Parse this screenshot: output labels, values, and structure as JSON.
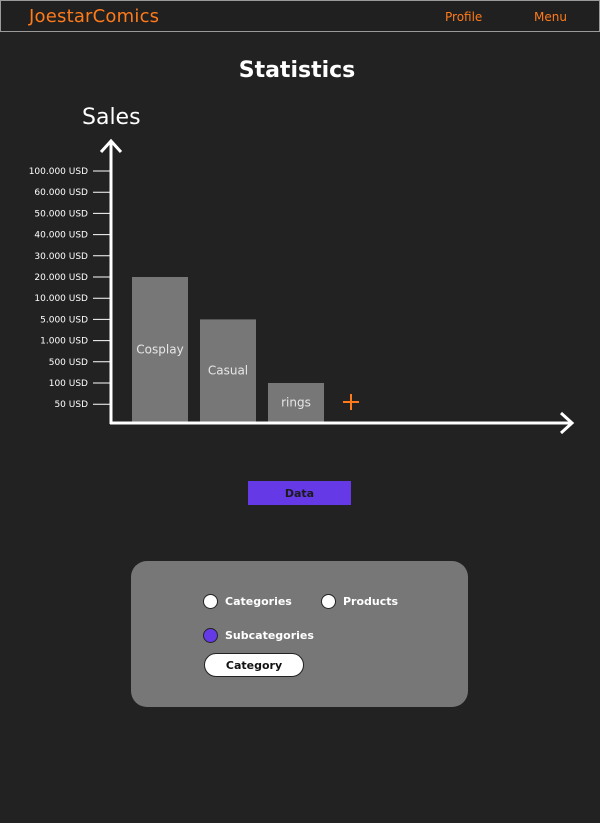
{
  "header": {
    "brand": "JoestarComics",
    "nav": {
      "profile": "Profile",
      "menu": "Menu"
    }
  },
  "page": {
    "title": "Statistics"
  },
  "chart_data": {
    "type": "bar",
    "title": "Sales",
    "xlabel": "",
    "ylabel": "Sales",
    "y_tick_labels": [
      "100.000 USD",
      "60.000 USD",
      "50.000 USD",
      "40.000 USD",
      "30.000 USD",
      "20.000 USD",
      "10.000 USD",
      "5.000 USD",
      "1.000 USD",
      "500 USD",
      "100 USD",
      "50 USD"
    ],
    "y_tick_values": [
      100000,
      60000,
      50000,
      40000,
      30000,
      20000,
      10000,
      5000,
      1000,
      500,
      100,
      50
    ],
    "y_scale": "categorical-ordinal",
    "categories": [
      "Cosplay",
      "Casual",
      "rings"
    ],
    "values": [
      20000,
      5000,
      100
    ],
    "bar_color": "#777777",
    "add_button_symbol": "+",
    "add_button_color": "#ff7a1a"
  },
  "actions": {
    "data_button": "Data"
  },
  "filter_panel": {
    "options": [
      {
        "label": "Categories",
        "selected": false
      },
      {
        "label": "Products",
        "selected": false
      },
      {
        "label": "Subcategories",
        "selected": true
      }
    ],
    "category_button": "Category"
  },
  "colors": {
    "background": "#222222",
    "accent": "#ff7a1a",
    "primary": "#6639e6",
    "panel": "#777777"
  }
}
